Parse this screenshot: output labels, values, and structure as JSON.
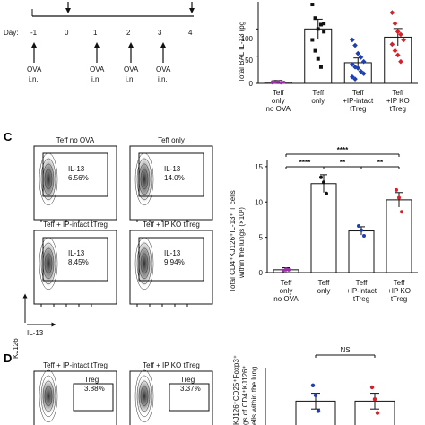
{
  "timeline": {
    "day_label": "Day:",
    "days": [
      "-1",
      "0",
      "1",
      "2",
      "3",
      "4"
    ],
    "ova_label": "OVA",
    "route_label": "i.n."
  },
  "panel_b": {
    "ylabel": "Total BAL IL-13 (pg",
    "ytick_top": "100",
    "ytick_mid": "50",
    "ytick_zero": "0",
    "groups": [
      {
        "label": [
          "Teff",
          "only",
          "no  OVA"
        ],
        "mean": 2,
        "color": "#9a2fa8",
        "points": [
          1,
          2,
          3,
          1,
          2,
          3,
          2
        ]
      },
      {
        "label": [
          "Teff",
          "only"
        ],
        "mean": 100,
        "color": "#111111",
        "points": [
          145,
          120,
          100,
          108,
          95,
          80,
          60,
          45,
          30,
          110
        ]
      },
      {
        "label": [
          "Teff",
          "+IP-intact",
          "tTreg"
        ],
        "mean": 38,
        "color": "#1f3fb0",
        "points": [
          80,
          70,
          55,
          48,
          40,
          35,
          30,
          28,
          22,
          18,
          12,
          8
        ]
      },
      {
        "label": [
          "Teff",
          "+IP KO",
          "tTreg"
        ],
        "mean": 85,
        "color": "#d8202a",
        "points": [
          130,
          110,
          95,
          90,
          80,
          72,
          60,
          52,
          40
        ]
      }
    ]
  },
  "panel_c": {
    "letter": "C",
    "plots": [
      {
        "title": "Teff no OVA",
        "gate": "IL-13",
        "pct": "6.56%"
      },
      {
        "title": "Teff only",
        "gate": "IL-13",
        "pct": "14.0%"
      },
      {
        "title": "Teff + IP-intact tTreg",
        "gate": "IL-13",
        "pct": "8.45%"
      },
      {
        "title": "Teff + IP KO tTreg",
        "gate": "IL-13",
        "pct": "9.94%"
      }
    ],
    "yaxis": "KJ126",
    "xaxis": "IL-13"
  },
  "panel_c_chart": {
    "ylabel1": "Total CD4⁺KJ126⁺IL-13⁺ T cells",
    "ylabel2": "within the lungs (×10³)",
    "yticks": [
      "0",
      "5",
      "10",
      "15"
    ],
    "sig": [
      "****",
      "**",
      "**",
      "****"
    ],
    "groups": [
      {
        "label": [
          "Teff",
          "only",
          "no  OVA"
        ],
        "mean": 0.4,
        "color": "#9a2fa8",
        "points": [
          0.3,
          0.5,
          0.4
        ]
      },
      {
        "label": [
          "Teff",
          "only"
        ],
        "mean": 12.6,
        "color": "#111111",
        "points": [
          13.5,
          12.8,
          11.2
        ]
      },
      {
        "label": [
          "Teff",
          "+IP-intact",
          "tTreg"
        ],
        "mean": 5.9,
        "color": "#1f3fb0",
        "points": [
          6.6,
          6.0,
          5.2
        ]
      },
      {
        "label": [
          "Teff",
          "+IP KO",
          "tTreg"
        ],
        "mean": 10.3,
        "color": "#d8202a",
        "points": [
          11.7,
          10.6,
          8.6
        ]
      }
    ]
  },
  "panel_d": {
    "letter": "D",
    "plots": [
      {
        "title": "Teff + IP-intact tTreg",
        "gate": "Treg",
        "pct": "3.88%"
      },
      {
        "title": "Teff + IP KO tTreg",
        "gate": "Treg",
        "pct": "3.37%"
      }
    ],
    "ylabel1": "KJ126⁺CD25⁺Foxp3⁺",
    "ylabel2": "gs of CD4⁺KJ126⁺",
    "ylabel3": "ells within the lung",
    "sig": "NS",
    "groups": [
      {
        "mean": 3.3,
        "color": "#1f3fb0",
        "points": [
          4.1,
          3.6,
          2.8
        ]
      },
      {
        "mean": 3.3,
        "color": "#d8202a",
        "points": [
          4.0,
          3.4,
          2.7
        ]
      }
    ]
  },
  "chart_data": [
    {
      "type": "bar",
      "categories": [
        "Teff only no OVA",
        "Teff only",
        "Teff +IP-intact tTreg",
        "Teff +IP KO tTreg"
      ],
      "values": [
        2,
        100,
        38,
        85
      ],
      "ylabel": "Total BAL IL-13 (pg",
      "ylim": [
        0,
        150
      ]
    },
    {
      "type": "bar",
      "categories": [
        "Teff only no OVA",
        "Teff only",
        "Teff +IP-intact tTreg",
        "Teff +IP KO tTreg"
      ],
      "values": [
        0.4,
        12.6,
        5.9,
        10.3
      ],
      "ylabel": "Total CD4⁺KJ126⁺IL-13⁺ T cells within the lungs (×10³)",
      "ylim": [
        0,
        15
      ]
    },
    {
      "type": "bar",
      "categories": [
        "Teff + IP-intact tTreg",
        "Teff + IP KO tTreg"
      ],
      "values": [
        3.3,
        3.3
      ],
      "ylabel": "KJ126⁺CD25⁺Foxp3⁺ gs of CD4⁺KJ126⁺ ells within the lung"
    }
  ]
}
